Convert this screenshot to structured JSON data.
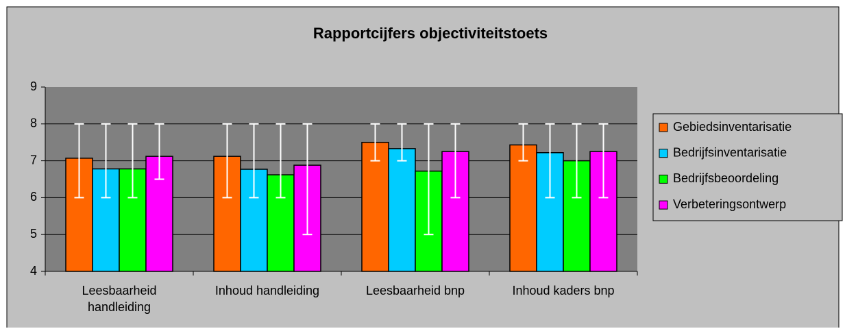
{
  "chart_data": {
    "type": "bar",
    "title": "Rapportcijfers objectiviteitstoets",
    "categories": [
      "Leesbaarheid handleiding",
      "Inhoud handleiding",
      "Leesbaarheid bnp",
      "Inhoud kaders bnp"
    ],
    "series": [
      {
        "name": "Gebiedsinventarisatie",
        "color": "#ff6600",
        "values": [
          7.07,
          7.12,
          7.5,
          7.43
        ],
        "low": [
          6,
          6,
          7,
          7
        ],
        "high": [
          8,
          8,
          8,
          8
        ]
      },
      {
        "name": "Bedrijfsinventarisatie",
        "color": "#00ccff",
        "values": [
          6.78,
          6.77,
          7.33,
          7.22
        ],
        "low": [
          6,
          6,
          7,
          6
        ],
        "high": [
          8,
          8,
          8,
          8
        ]
      },
      {
        "name": "Bedrijfsbeoordeling",
        "color": "#00ff00",
        "values": [
          6.78,
          6.62,
          6.72,
          7.0
        ],
        "low": [
          6,
          6,
          5,
          6
        ],
        "high": [
          8,
          8,
          8,
          8
        ]
      },
      {
        "name": "Verbeteringsontwerp",
        "color": "#ff00ff",
        "values": [
          7.12,
          6.88,
          7.25,
          7.25
        ],
        "low": [
          6.5,
          5,
          6,
          6
        ],
        "high": [
          8,
          8,
          8,
          8
        ]
      }
    ],
    "ylim": [
      4,
      9
    ],
    "yticks": [
      4,
      5,
      6,
      7,
      8,
      9
    ],
    "grid": true,
    "legend": "right"
  }
}
